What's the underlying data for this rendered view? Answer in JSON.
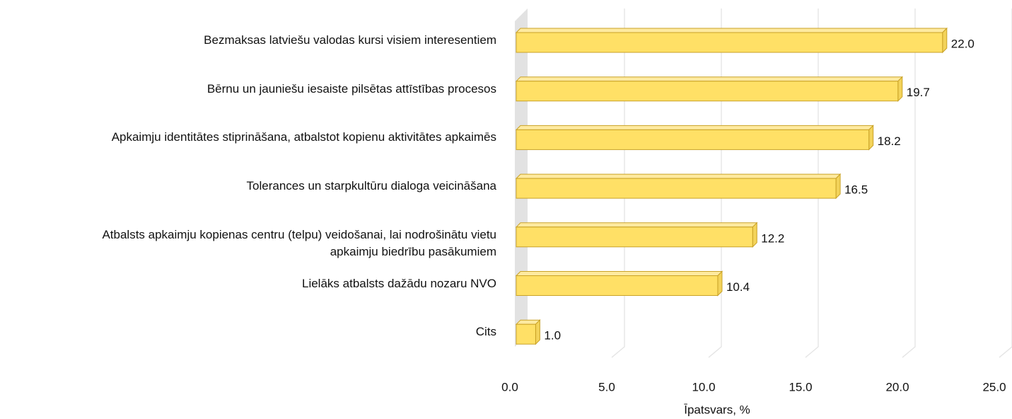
{
  "chart_data": {
    "type": "bar3d_horizontal",
    "categories": [
      "Bezmaksas latviešu valodas kursi visiem interesentiem",
      "Bērnu un jauniešu iesaiste pilsētas attīstības procesos",
      "Apkaimju identitātes stiprināšana, atbalstot kopienu aktivitātes apkaimēs",
      "Tolerances un starpkultūru dialoga veicināšana",
      "Atbalsts apkaimju kopienas centru (telpu) veidošanai, lai nodrošinātu vietu\napkaimju biedrību pasākumiem",
      "Lielāks atbalsts dažādu nozaru NVO",
      "Cits"
    ],
    "values": [
      22.0,
      19.7,
      18.2,
      16.5,
      12.2,
      10.4,
      1.0
    ],
    "value_labels": [
      "22.0",
      "19.7",
      "18.2",
      "16.5",
      "12.2",
      "10.4",
      "1.0"
    ],
    "color": "#ffe066",
    "xlabel": "Īpatsvars, %",
    "xlim": [
      0,
      25
    ],
    "xticks": [
      {
        "value": 0,
        "label": "0.0"
      },
      {
        "value": 5,
        "label": "5.0"
      },
      {
        "value": 10,
        "label": "10.0"
      },
      {
        "value": 15,
        "label": "15.0"
      },
      {
        "value": 20,
        "label": "20.0"
      },
      {
        "value": 25,
        "label": "25.0"
      }
    ],
    "grid": true
  }
}
